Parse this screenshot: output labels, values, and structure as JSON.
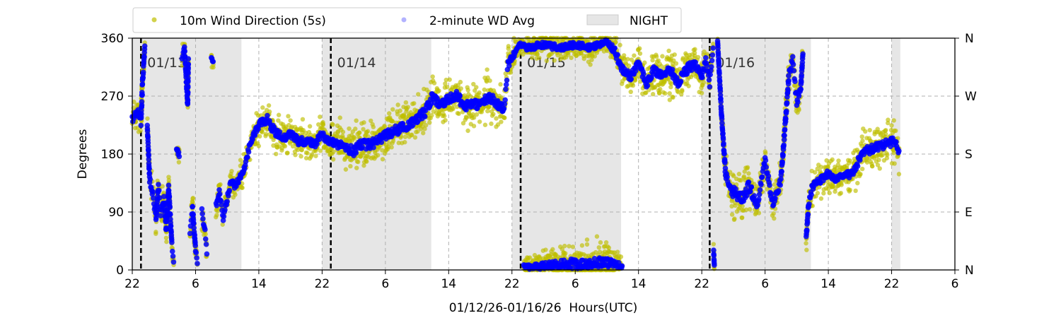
{
  "chart_data": {
    "type": "scatter",
    "title": "",
    "xlabel": "01/12/26-01/16/26  Hours(UTC)",
    "ylabel": "Degrees",
    "x_unit": "hours since 01/12 22:00 UTC",
    "xlim": [
      0,
      104
    ],
    "ylim": [
      0,
      360
    ],
    "x_ticks": [
      {
        "v": 0,
        "label": "22"
      },
      {
        "v": 8,
        "label": "6"
      },
      {
        "v": 16,
        "label": "14"
      },
      {
        "v": 24,
        "label": "22"
      },
      {
        "v": 32,
        "label": "6"
      },
      {
        "v": 40,
        "label": "14"
      },
      {
        "v": 48,
        "label": "22"
      },
      {
        "v": 56,
        "label": "6"
      },
      {
        "v": 64,
        "label": "14"
      },
      {
        "v": 72,
        "label": "22"
      },
      {
        "v": 80,
        "label": "6"
      },
      {
        "v": 88,
        "label": "14"
      },
      {
        "v": 96,
        "label": "22"
      },
      {
        "v": 104,
        "label": "6"
      }
    ],
    "y_ticks": [
      {
        "v": 0,
        "label": "0"
      },
      {
        "v": 90,
        "label": "90"
      },
      {
        "v": 180,
        "label": "180"
      },
      {
        "v": 270,
        "label": "270"
      },
      {
        "v": 360,
        "label": "360"
      }
    ],
    "y2_ticks": [
      {
        "v": 0,
        "label": "N"
      },
      {
        "v": 90,
        "label": "E"
      },
      {
        "v": 180,
        "label": "S"
      },
      {
        "v": 270,
        "label": "W"
      },
      {
        "v": 360,
        "label": "N"
      }
    ],
    "grid": true,
    "legend": {
      "placement": "top-center",
      "items": [
        {
          "label": "10m Wind Direction (5s)",
          "color": "#bfbf00"
        },
        {
          "label": "2-minute WD Avg",
          "color": "#0000ff"
        },
        {
          "label": "NIGHT",
          "color": "#e6e6e6"
        }
      ]
    },
    "night_periods": [
      [
        0,
        13.8
      ],
      [
        24,
        37.8
      ],
      [
        48,
        61.8
      ],
      [
        72,
        85.8
      ],
      [
        96,
        97.1
      ]
    ],
    "day_markers": [
      {
        "x": 1.1,
        "label": "01/13"
      },
      {
        "x": 25.1,
        "label": "01/14"
      },
      {
        "x": 49.1,
        "label": "01/15"
      },
      {
        "x": 73.0,
        "label": "01/16"
      }
    ],
    "series_note": "segments of [hour, avg_deg, spread_deg_of_5s_data]",
    "segments": [
      [
        [
          0,
          235,
          20
        ],
        [
          0.8,
          245,
          20
        ],
        [
          1.1,
          230,
          20
        ],
        [
          1.3,
          290,
          20
        ],
        [
          1.6,
          350,
          10
        ]
      ],
      [
        [
          1.9,
          225,
          10
        ],
        [
          2.2,
          140,
          15
        ],
        [
          2.6,
          120,
          20
        ],
        [
          3.0,
          80,
          20
        ],
        [
          3.3,
          130,
          20
        ],
        [
          3.6,
          90,
          20
        ],
        [
          4.0,
          110,
          20
        ],
        [
          4.3,
          60,
          15
        ],
        [
          4.6,
          130,
          15
        ],
        [
          5.0,
          40,
          10
        ],
        [
          5.3,
          5,
          5
        ]
      ],
      [
        [
          5.6,
          190,
          10
        ],
        [
          6.0,
          175,
          10
        ]
      ],
      [
        [
          6.3,
          330,
          10
        ],
        [
          6.6,
          345,
          10
        ],
        [
          7.0,
          255,
          10
        ],
        [
          7.1,
          330,
          10
        ]
      ],
      [
        [
          7.3,
          60,
          15
        ],
        [
          7.6,
          100,
          20
        ],
        [
          8.0,
          30,
          15
        ],
        [
          8.3,
          5,
          5
        ]
      ],
      [
        [
          8.8,
          90,
          20
        ],
        [
          9.2,
          60,
          15
        ],
        [
          9.5,
          15,
          10
        ]
      ],
      [
        [
          10.0,
          330,
          10
        ],
        [
          10.3,
          320,
          10
        ]
      ],
      [
        [
          10.6,
          100,
          20
        ],
        [
          11.0,
          120,
          15
        ],
        [
          11.5,
          80,
          15
        ],
        [
          12.0,
          110,
          15
        ],
        [
          12.5,
          140,
          15
        ],
        [
          13.0,
          130,
          15
        ],
        [
          14.0,
          150,
          20
        ],
        [
          15.0,
          200,
          15
        ],
        [
          16,
          225,
          20
        ],
        [
          17,
          235,
          25
        ],
        [
          18,
          215,
          20
        ],
        [
          19,
          205,
          20
        ],
        [
          20,
          210,
          20
        ],
        [
          21,
          200,
          20
        ],
        [
          22,
          200,
          20
        ],
        [
          23,
          195,
          20
        ],
        [
          24,
          210,
          20
        ],
        [
          25,
          200,
          20
        ],
        [
          26,
          195,
          25
        ],
        [
          27,
          190,
          25
        ],
        [
          28,
          185,
          25
        ],
        [
          29,
          195,
          25
        ],
        [
          30,
          195,
          25
        ],
        [
          31,
          200,
          25
        ],
        [
          32,
          210,
          25
        ],
        [
          33,
          215,
          25
        ],
        [
          34,
          220,
          25
        ],
        [
          35,
          225,
          25
        ],
        [
          36,
          235,
          25
        ],
        [
          37,
          245,
          25
        ],
        [
          38,
          270,
          25
        ],
        [
          39,
          255,
          25
        ],
        [
          40,
          265,
          25
        ],
        [
          41,
          270,
          25
        ],
        [
          42,
          255,
          25
        ],
        [
          43,
          260,
          25
        ],
        [
          44,
          255,
          25
        ],
        [
          45,
          270,
          25
        ],
        [
          46,
          260,
          25
        ],
        [
          47,
          250,
          20
        ],
        [
          47.5,
          320,
          20
        ],
        [
          48,
          330,
          20
        ],
        [
          49,
          350,
          10
        ],
        [
          50,
          345,
          15
        ],
        [
          52,
          350,
          15
        ],
        [
          54,
          345,
          15
        ],
        [
          56,
          350,
          15
        ],
        [
          58,
          345,
          15
        ],
        [
          60,
          355,
          10
        ],
        [
          61,
          340,
          20
        ],
        [
          62,
          310,
          20
        ],
        [
          63,
          300,
          20
        ],
        [
          64,
          320,
          20
        ],
        [
          65,
          290,
          25
        ],
        [
          66,
          310,
          25
        ],
        [
          67,
          300,
          25
        ],
        [
          68,
          310,
          25
        ],
        [
          69,
          290,
          25
        ],
        [
          70,
          310,
          25
        ],
        [
          71,
          320,
          25
        ],
        [
          72,
          300,
          25
        ],
        [
          72.5,
          330,
          20
        ],
        [
          73,
          290,
          20
        ],
        [
          73.5,
          350,
          10
        ]
      ],
      [
        [
          49.5,
          5,
          12
        ],
        [
          51,
          5,
          15
        ],
        [
          53,
          8,
          20
        ],
        [
          55,
          10,
          25
        ],
        [
          57,
          8,
          25
        ],
        [
          59,
          12,
          25
        ],
        [
          61,
          10,
          20
        ],
        [
          62,
          5,
          10
        ]
      ],
      [
        [
          73.5,
          30,
          10
        ],
        [
          73.6,
          2,
          5
        ]
      ],
      [
        [
          74,
          355,
          5
        ],
        [
          74.5,
          240,
          10
        ],
        [
          75,
          150,
          20
        ],
        [
          76,
          120,
          30
        ],
        [
          77,
          110,
          30
        ],
        [
          78,
          130,
          30
        ],
        [
          79,
          100,
          20
        ],
        [
          80,
          170,
          20
        ],
        [
          81,
          100,
          20
        ],
        [
          82,
          140,
          20
        ],
        [
          83,
          300,
          20
        ],
        [
          83.5,
          330,
          20
        ],
        [
          84,
          260,
          20
        ],
        [
          84.5,
          280,
          20
        ],
        [
          84.8,
          340,
          10
        ]
      ],
      [
        [
          85.2,
          50,
          15
        ],
        [
          85.5,
          100,
          15
        ],
        [
          86,
          130,
          20
        ],
        [
          87,
          140,
          20
        ],
        [
          88,
          150,
          20
        ],
        [
          89,
          140,
          20
        ],
        [
          90,
          145,
          20
        ],
        [
          91,
          150,
          20
        ],
        [
          92,
          175,
          25
        ],
        [
          93,
          185,
          25
        ],
        [
          94,
          190,
          25
        ],
        [
          95,
          195,
          25
        ],
        [
          96,
          200,
          25
        ],
        [
          96.5,
          195,
          25
        ],
        [
          97,
          180,
          20
        ]
      ]
    ]
  }
}
